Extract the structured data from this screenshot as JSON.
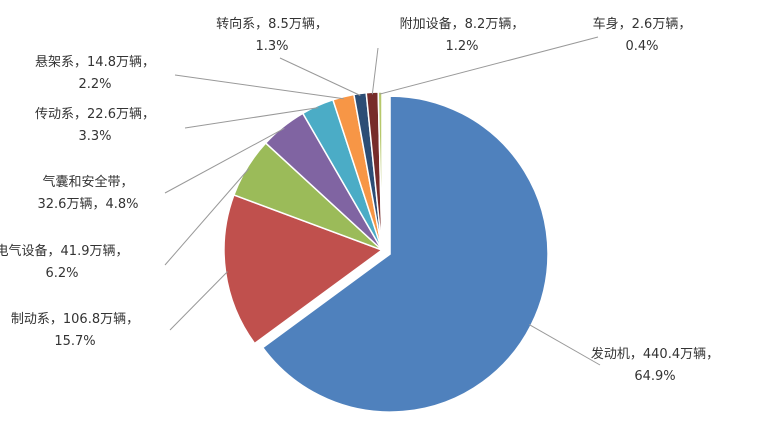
{
  "chart_data": {
    "type": "pie",
    "categories": [
      "发动机",
      "制动系",
      "电气设备",
      "气囊和安全带",
      "传动系",
      "悬架系",
      "转向系",
      "附加设备",
      "车身"
    ],
    "values": [
      440.4,
      106.8,
      41.9,
      32.6,
      22.6,
      14.8,
      8.5,
      8.2,
      2.6
    ],
    "value_labels": [
      "440.4万辆",
      "106.8万辆",
      "41.9万辆",
      "32.6万辆",
      "22.6万辆",
      "14.8万辆",
      "8.5万辆",
      "8.2万辆",
      "2.6万辆"
    ],
    "percents": [
      64.9,
      15.7,
      6.2,
      4.8,
      3.3,
      2.2,
      1.3,
      1.2,
      0.4
    ],
    "percent_labels": [
      "64.9%",
      "15.7%",
      "6.2%",
      "4.8%",
      "3.3%",
      "2.2%",
      "1.3%",
      "1.2%",
      "0.4%"
    ],
    "label_separator": "，",
    "colors": [
      "#4f81bd",
      "#c0504d",
      "#9bbb59",
      "#8064a2",
      "#4bacc6",
      "#f79646",
      "#2c4d75",
      "#772c2a",
      "#b7c86b"
    ]
  }
}
